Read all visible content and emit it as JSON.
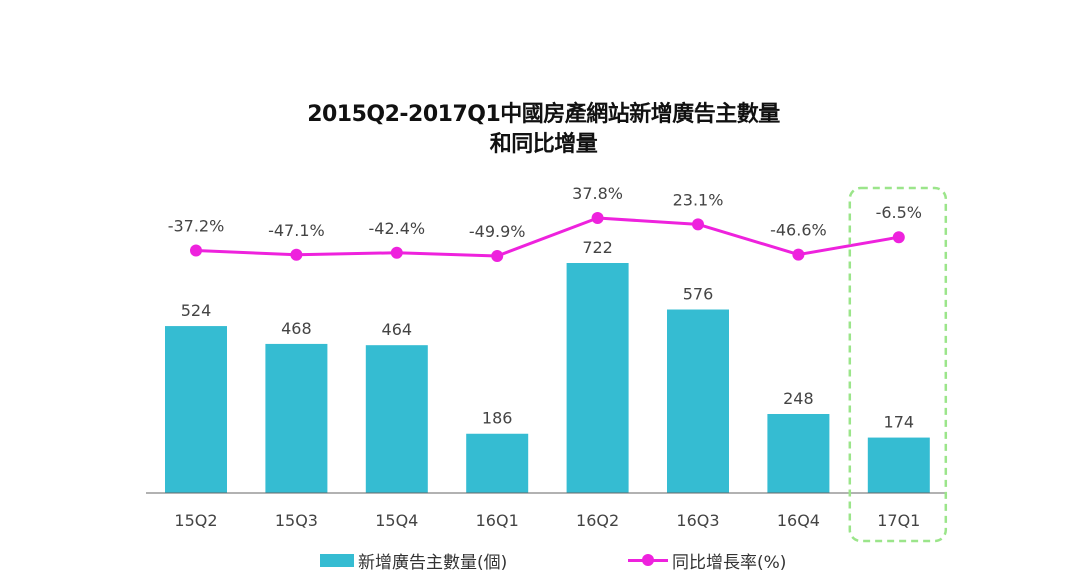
{
  "title_line1": "2015Q2-2017Q1中國房產網站新增廣告主數量",
  "title_line2": "和同比增量",
  "colors": {
    "bar": "#35bcd2",
    "line": "#ee22dd",
    "highlight": "#9be58a",
    "axis": "#666666"
  },
  "legend": {
    "bar_label": "新增廣告主數量(個)",
    "line_label": "同比增長率(%)",
    "bar_icon": "bar-swatch",
    "line_icon": "line-marker-swatch"
  },
  "chart_data": {
    "type": "bar+line",
    "categories": [
      "15Q2",
      "15Q3",
      "15Q4",
      "16Q1",
      "16Q2",
      "16Q3",
      "16Q4",
      "17Q1"
    ],
    "series": [
      {
        "name": "新增廣告主數量(個)",
        "type": "bar",
        "values": [
          524,
          468,
          464,
          186,
          722,
          576,
          248,
          174
        ]
      },
      {
        "name": "同比增長率(%)",
        "type": "line",
        "values": [
          -37.2,
          -47.1,
          -42.4,
          -49.9,
          37.8,
          23.1,
          -46.6,
          -6.5
        ],
        "labels": [
          "-37.2%",
          "-47.1%",
          "-42.4%",
          "-49.9%",
          "37.8%",
          "23.1%",
          "-46.6%",
          "-6.5%"
        ]
      }
    ],
    "ylim_bar": [
      0,
      722
    ],
    "ylim_line": [
      -49.9,
      37.8
    ],
    "highlight_category": "17Q1",
    "grid": false,
    "legend_position": "bottom"
  }
}
